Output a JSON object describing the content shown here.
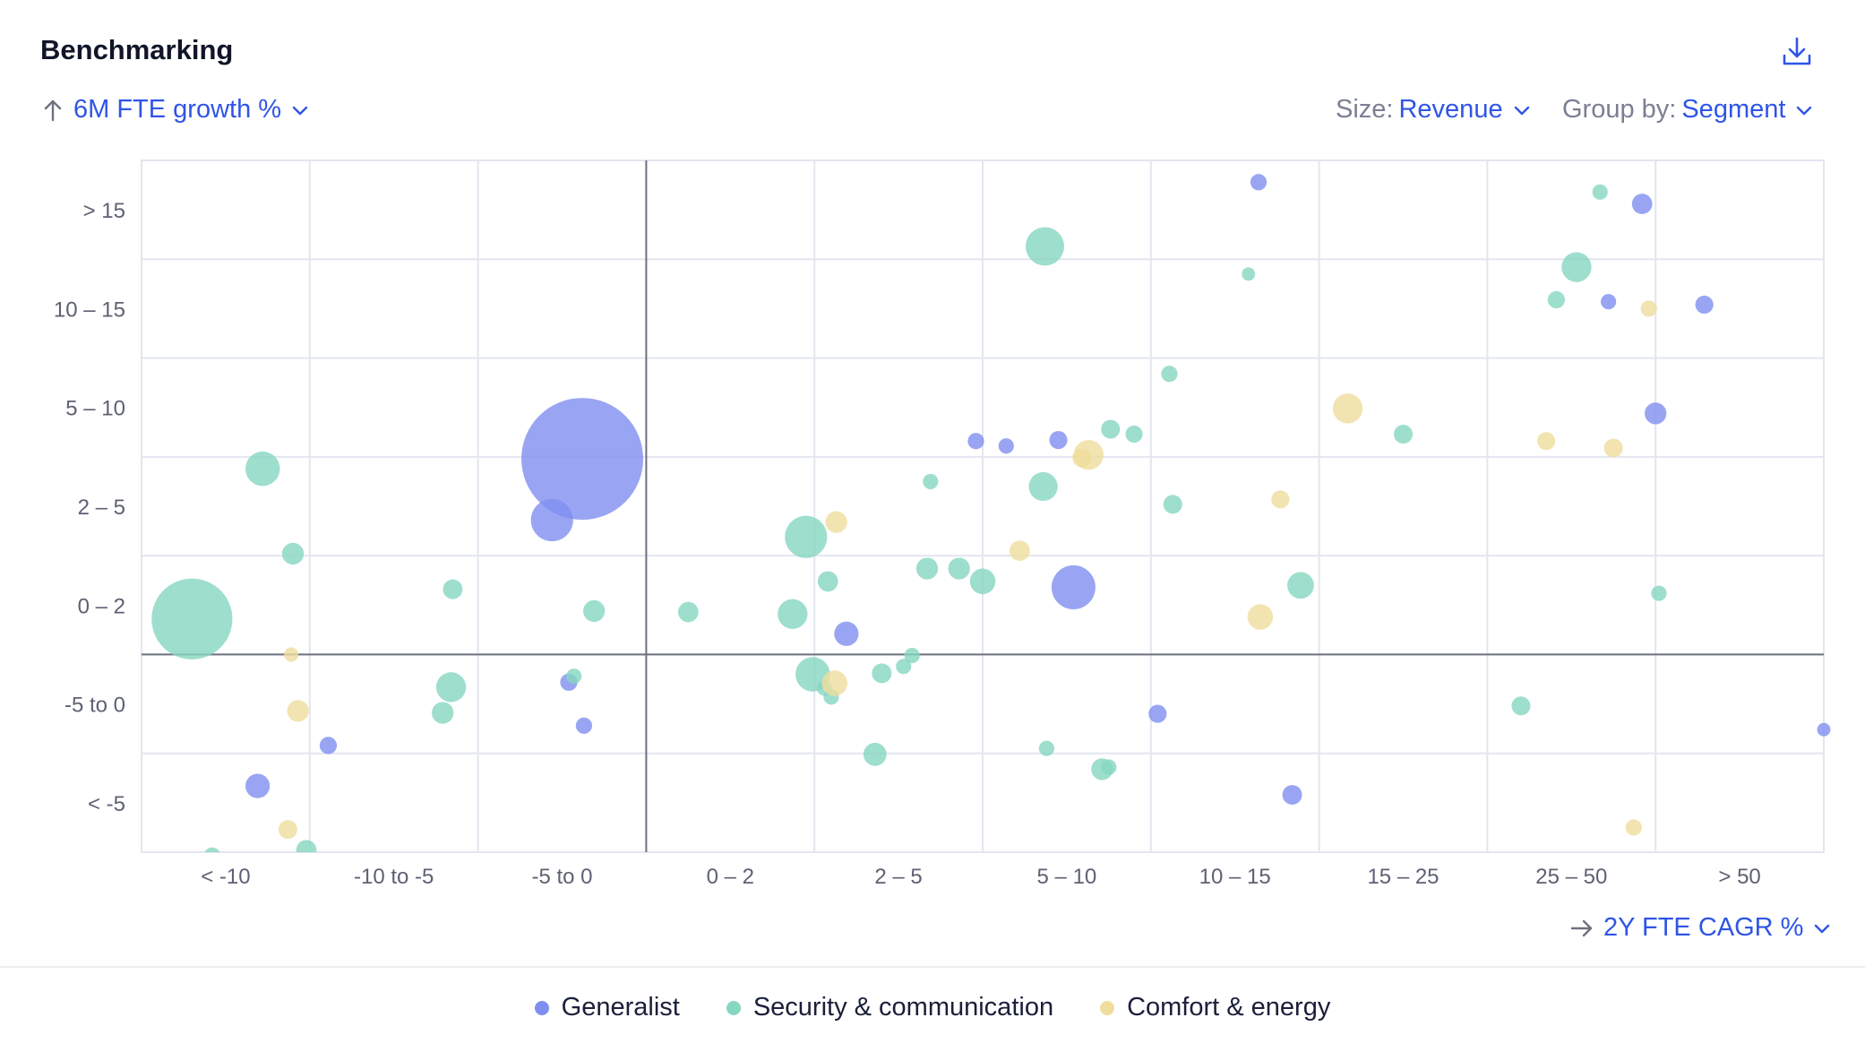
{
  "header": {
    "title": "Benchmarking"
  },
  "controls": {
    "y_metric": "6M FTE growth %",
    "size_label": "Size:",
    "size_value": "Revenue",
    "group_label": "Group by:",
    "group_value": "Segment",
    "x_metric": "2Y FTE CAGR %"
  },
  "colors": {
    "Generalist": "#7f8ff0",
    "Security & communication": "#86d6c0",
    "Comfort & energy": "#efdd9e",
    "grid": "#e3e6ef",
    "axis": "#6e7180"
  },
  "legend": {
    "items": [
      {
        "label": "Generalist",
        "color": "#7f8ff0"
      },
      {
        "label": "Security & communication",
        "color": "#86d6c0"
      },
      {
        "label": "Comfort & energy",
        "color": "#efdd9e"
      }
    ]
  },
  "chart_data": {
    "type": "scatter",
    "title": "Benchmarking",
    "xlabel": "2Y FTE CAGR %",
    "ylabel": "6M FTE growth %",
    "size_by": "Revenue",
    "group_by": "Segment",
    "x_categories": [
      "< -10",
      "-10 to -5",
      "-5 to 0",
      "0 – 2",
      "2 – 5",
      "5 – 10",
      "10 – 15",
      "15 – 25",
      "25 – 50",
      "> 50"
    ],
    "y_categories": [
      "< -5",
      "-5 to 0",
      "0 – 2",
      "2 – 5",
      "5 – 10",
      "10 – 15",
      "> 15"
    ],
    "x_range": [
      0,
      10
    ],
    "y_range": [
      0,
      7
    ],
    "reference_lines": {
      "x": 3,
      "y": 2
    },
    "series": [
      {
        "name": "Generalist",
        "points": [
          {
            "x": 2.62,
            "y": 3.98,
            "size": 500
          },
          {
            "x": 2.44,
            "y": 3.36,
            "size": 60
          },
          {
            "x": 4.19,
            "y": 2.21,
            "size": 20
          },
          {
            "x": 5.54,
            "y": 2.68,
            "size": 65
          },
          {
            "x": 4.96,
            "y": 4.16,
            "size": 9
          },
          {
            "x": 5.14,
            "y": 4.11,
            "size": 8
          },
          {
            "x": 5.45,
            "y": 4.17,
            "size": 11
          },
          {
            "x": 6.64,
            "y": 6.78,
            "size": 9
          },
          {
            "x": 8.92,
            "y": 6.56,
            "size": 14
          },
          {
            "x": 8.72,
            "y": 5.57,
            "size": 8
          },
          {
            "x": 9.29,
            "y": 5.54,
            "size": 11
          },
          {
            "x": 9.0,
            "y": 4.44,
            "size": 16
          },
          {
            "x": 6.04,
            "y": 1.4,
            "size": 11
          },
          {
            "x": 6.84,
            "y": 0.58,
            "size": 13
          },
          {
            "x": 10.0,
            "y": 1.24,
            "size": 6
          },
          {
            "x": 2.54,
            "y": 1.72,
            "size": 10
          },
          {
            "x": 2.63,
            "y": 1.28,
            "size": 9
          },
          {
            "x": 1.11,
            "y": 1.08,
            "size": 10
          },
          {
            "x": 0.69,
            "y": 0.67,
            "size": 20
          }
        ]
      },
      {
        "name": "Security & communication",
        "points": [
          {
            "x": 0.3,
            "y": 2.36,
            "size": 220
          },
          {
            "x": 0.72,
            "y": 3.88,
            "size": 40
          },
          {
            "x": 0.9,
            "y": 3.02,
            "size": 16
          },
          {
            "x": 1.85,
            "y": 2.66,
            "size": 13
          },
          {
            "x": 2.69,
            "y": 2.44,
            "size": 16
          },
          {
            "x": 1.84,
            "y": 1.67,
            "size": 30
          },
          {
            "x": 1.79,
            "y": 1.41,
            "size": 16
          },
          {
            "x": 2.57,
            "y": 1.78,
            "size": 8
          },
          {
            "x": 0.42,
            "y": -0.04,
            "size": 10
          },
          {
            "x": 0.98,
            "y": 0.02,
            "size": 14
          },
          {
            "x": 3.25,
            "y": 2.43,
            "size": 14
          },
          {
            "x": 3.87,
            "y": 2.41,
            "size": 30
          },
          {
            "x": 3.95,
            "y": 3.19,
            "size": 60
          },
          {
            "x": 3.99,
            "y": 1.8,
            "size": 40
          },
          {
            "x": 4.06,
            "y": 1.66,
            "size": 8
          },
          {
            "x": 4.1,
            "y": 1.57,
            "size": 8
          },
          {
            "x": 4.08,
            "y": 2.74,
            "size": 14
          },
          {
            "x": 4.4,
            "y": 1.81,
            "size": 13
          },
          {
            "x": 4.58,
            "y": 1.99,
            "size": 8
          },
          {
            "x": 4.53,
            "y": 1.88,
            "size": 8
          },
          {
            "x": 4.36,
            "y": 0.99,
            "size": 18
          },
          {
            "x": 4.67,
            "y": 2.87,
            "size": 16
          },
          {
            "x": 4.86,
            "y": 2.87,
            "size": 16
          },
          {
            "x": 4.69,
            "y": 3.75,
            "size": 8
          },
          {
            "x": 5.0,
            "y": 2.74,
            "size": 22
          },
          {
            "x": 5.37,
            "y": 6.13,
            "size": 50
          },
          {
            "x": 5.36,
            "y": 3.7,
            "size": 28
          },
          {
            "x": 5.38,
            "y": 1.05,
            "size": 8
          },
          {
            "x": 5.76,
            "y": 4.28,
            "size": 12
          },
          {
            "x": 5.9,
            "y": 4.23,
            "size": 10
          },
          {
            "x": 5.71,
            "y": 0.84,
            "size": 16
          },
          {
            "x": 5.75,
            "y": 0.86,
            "size": 8
          },
          {
            "x": 6.11,
            "y": 4.84,
            "size": 9
          },
          {
            "x": 6.13,
            "y": 3.52,
            "size": 12
          },
          {
            "x": 6.58,
            "y": 5.85,
            "size": 6
          },
          {
            "x": 6.89,
            "y": 2.7,
            "size": 24
          },
          {
            "x": 7.5,
            "y": 4.23,
            "size": 12
          },
          {
            "x": 8.2,
            "y": 1.48,
            "size": 12
          },
          {
            "x": 8.41,
            "y": 5.59,
            "size": 10
          },
          {
            "x": 8.67,
            "y": 6.68,
            "size": 8
          },
          {
            "x": 8.53,
            "y": 5.92,
            "size": 30
          },
          {
            "x": 9.02,
            "y": 2.62,
            "size": 8
          }
        ]
      },
      {
        "name": "Comfort & energy",
        "points": [
          {
            "x": 0.89,
            "y": 2.0,
            "size": 7
          },
          {
            "x": 0.93,
            "y": 1.43,
            "size": 16
          },
          {
            "x": 0.87,
            "y": 0.23,
            "size": 12
          },
          {
            "x": 4.13,
            "y": 3.34,
            "size": 16
          },
          {
            "x": 4.12,
            "y": 1.71,
            "size": 22
          },
          {
            "x": 5.22,
            "y": 3.05,
            "size": 14
          },
          {
            "x": 5.63,
            "y": 4.02,
            "size": 30
          },
          {
            "x": 5.59,
            "y": 3.99,
            "size": 12
          },
          {
            "x": 6.77,
            "y": 3.57,
            "size": 11
          },
          {
            "x": 6.65,
            "y": 2.38,
            "size": 22
          },
          {
            "x": 7.17,
            "y": 4.49,
            "size": 30
          },
          {
            "x": 8.96,
            "y": 5.5,
            "size": 9
          },
          {
            "x": 8.35,
            "y": 4.16,
            "size": 11
          },
          {
            "x": 8.75,
            "y": 4.09,
            "size": 12
          },
          {
            "x": 8.87,
            "y": 0.25,
            "size": 9
          }
        ]
      }
    ]
  }
}
